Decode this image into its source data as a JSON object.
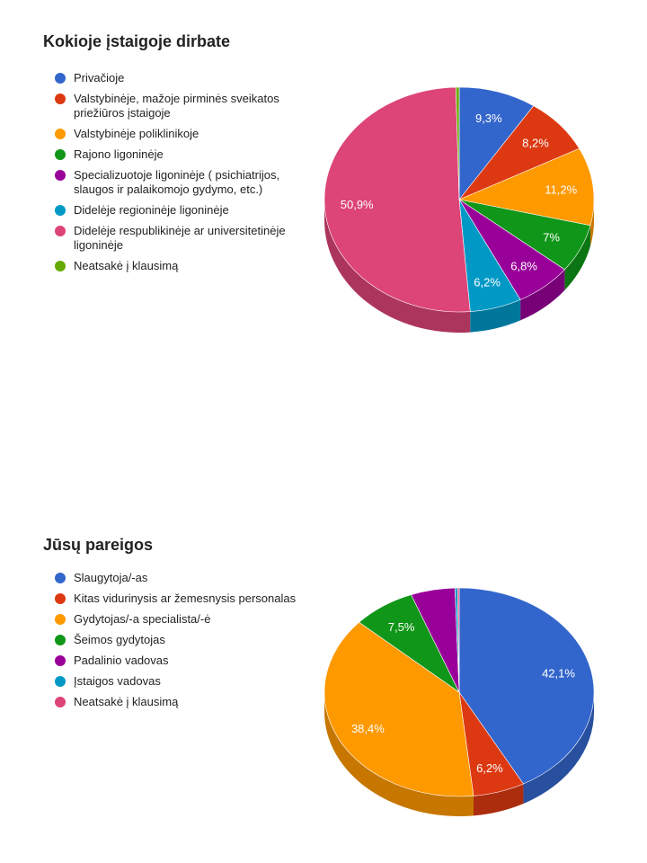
{
  "chart_data": [
    {
      "type": "pie",
      "title": "Kokioje įstaigoje dirbate",
      "legend_position": "left",
      "categories": [
        "Privačioje",
        "Valstybinėje, mažoje pirminės sveikatos priežiūros įstaigoje",
        "Valstybinėje poliklinikoje",
        "Rajono ligoninėje",
        "Specializuotoje ligoninėje ( psichiatrijos, slaugos ir palaikomojo gydymo, etc.)",
        "Didelėje regioninėje ligoninėje",
        "Didelėje respublikinėje ar universitetinėje ligoninėje",
        "Neatsakė į klausimą"
      ],
      "values": [
        9.3,
        8.2,
        11.2,
        7.0,
        6.8,
        6.2,
        50.9,
        0.4
      ],
      "value_labels": [
        "9,3%",
        "8,2%",
        "11,2%",
        "7%",
        "6,8%",
        "6,2%",
        "50,9%",
        ""
      ],
      "colors": [
        "#3366cc",
        "#dc3912",
        "#ff9900",
        "#109618",
        "#990099",
        "#0099c6",
        "#dd4477",
        "#66aa00"
      ]
    },
    {
      "type": "pie",
      "title": "Jūsų pareigos",
      "legend_position": "left",
      "categories": [
        "Slaugytoja/-as",
        "Kitas vidurinysis ar žemesnysis personalas",
        "Gydytojas/-a specialista/-ė",
        "Šeimos gydytojas",
        "Padalinio vadovas",
        "Įstaigos vadovas",
        "Neatsakė į klausimą"
      ],
      "values": [
        42.1,
        6.2,
        38.4,
        7.5,
        5.3,
        0.3,
        0.2
      ],
      "value_labels": [
        "42,1%",
        "6,2%",
        "38,4%",
        "7,5%",
        "",
        "",
        ""
      ],
      "colors": [
        "#3366cc",
        "#dc3912",
        "#ff9900",
        "#109618",
        "#990099",
        "#0099c6",
        "#dd4477"
      ]
    }
  ]
}
